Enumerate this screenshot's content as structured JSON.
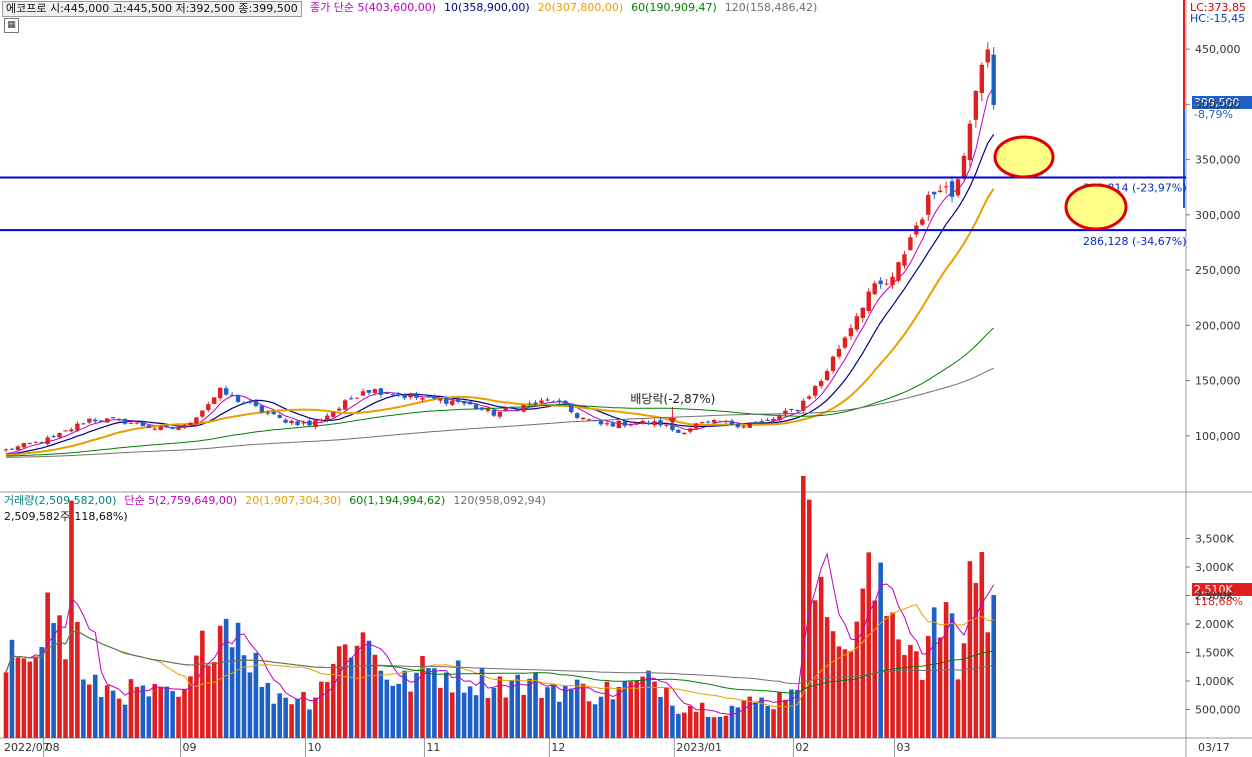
{
  "header": {
    "stock_info": "에코프로 시:445,000 고:445,500 저:392,500 종:399,500",
    "ma_items": [
      {
        "text": "종가 단순 5(403,600,00)",
        "color": "#c000c0"
      },
      {
        "text": "10(358,900,00)",
        "color": "#000080"
      },
      {
        "text": "20(307,800,00)",
        "color": "#e8a000"
      },
      {
        "text": "60(190,909,47)",
        "color": "#008000"
      },
      {
        "text": "120(158,486,42)",
        "color": "#707070"
      }
    ],
    "lc_label": "LC:373,85",
    "hc_label": "HC:-15,45"
  },
  "volume_header": {
    "items": [
      {
        "text": "거래량(2,509,582,00)",
        "color": "#008080"
      },
      {
        "text": "단순 5(2,759,649,00)",
        "color": "#c000c0"
      },
      {
        "text": "20(1,907,304,30)",
        "color": "#e8a000"
      },
      {
        "text": "60(1,194,994,62)",
        "color": "#008000"
      },
      {
        "text": "120(958,092,94)",
        "color": "#707070"
      }
    ],
    "sub_label": "2,509,582주(118,68%)"
  },
  "right_tags": {
    "price": "399,500",
    "price_pct": "-8,79%",
    "volume": "2,510K",
    "volume_pct": "118,68%"
  },
  "annotations": {
    "dividend": "배당락(-2,87%)",
    "line_upper_label": "333,814 (-23,97%)",
    "line_lower_label": "286,128 (-34,67%)"
  },
  "chart_data": [
    {
      "type": "candlestick",
      "ylim": [
        50000,
        480000
      ],
      "y_ticks": [
        100000,
        150000,
        200000,
        250000,
        300000,
        350000,
        400000,
        450000
      ],
      "y_tick_labels": [
        "100,000",
        "150,000",
        "200,000",
        "250,000",
        "300,000",
        "350,000",
        "400,000",
        "450,000"
      ],
      "x_labels": [
        "2022/07",
        "08",
        "09",
        "10",
        "11",
        "12",
        "2023/01",
        "02",
        "03",
        "03/17"
      ],
      "trading_days": 167,
      "horizontal_lines": [
        333814,
        286128
      ],
      "month_start_index": [
        0,
        7,
        30,
        51,
        71,
        92,
        113,
        133,
        150
      ],
      "close_anchors": [
        [
          0,
          87000
        ],
        [
          8,
          98000
        ],
        [
          14,
          115000
        ],
        [
          20,
          113000
        ],
        [
          26,
          106000
        ],
        [
          30,
          108000
        ],
        [
          36,
          140000
        ],
        [
          40,
          130000
        ],
        [
          46,
          115000
        ],
        [
          51,
          110000
        ],
        [
          56,
          125000
        ],
        [
          60,
          142000
        ],
        [
          64,
          140000
        ],
        [
          68,
          135000
        ],
        [
          72,
          133000
        ],
        [
          76,
          131000
        ],
        [
          82,
          120000
        ],
        [
          87,
          127000
        ],
        [
          92,
          132000
        ],
        [
          96,
          118000
        ],
        [
          100,
          110000
        ],
        [
          106,
          112000
        ],
        [
          110,
          111000
        ],
        [
          113,
          103000
        ],
        [
          116,
          110000
        ],
        [
          120,
          112000
        ],
        [
          124,
          110000
        ],
        [
          128,
          113000
        ],
        [
          133,
          125000
        ],
        [
          137,
          150000
        ],
        [
          141,
          190000
        ],
        [
          145,
          230000
        ],
        [
          149,
          240000
        ],
        [
          152,
          280000
        ],
        [
          155,
          312000
        ],
        [
          157,
          330000
        ],
        [
          159,
          318000
        ],
        [
          161,
          360000
        ],
        [
          163,
          420000
        ],
        [
          164,
          430000
        ],
        [
          165,
          445000
        ],
        [
          166,
          399500
        ]
      ],
      "series": [
        {
          "name": "5",
          "color": "#c000c0"
        },
        {
          "name": "10",
          "color": "#000080"
        },
        {
          "name": "20",
          "color": "#e8a000"
        },
        {
          "name": "60",
          "color": "#008000"
        },
        {
          "name": "120",
          "color": "#707070"
        }
      ]
    },
    {
      "type": "bar",
      "title": "거래량",
      "ylim": [
        0,
        4000000
      ],
      "y_ticks": [
        500000,
        1000000,
        1500000,
        2000000,
        2500000,
        3000000,
        3500000
      ],
      "y_tick_labels": [
        "500,000",
        "1,000K",
        "1,500K",
        "2,000K",
        "2,500K",
        "3,000K",
        "3,500K"
      ],
      "volume_anchors": [
        [
          0,
          900000
        ],
        [
          1,
          1400000
        ],
        [
          8,
          2300000
        ],
        [
          10,
          1500000
        ],
        [
          11,
          3800000
        ],
        [
          13,
          900000
        ],
        [
          30,
          700000
        ],
        [
          34,
          1800000
        ],
        [
          38,
          2200000
        ],
        [
          44,
          800000
        ],
        [
          51,
          700000
        ],
        [
          59,
          1900000
        ],
        [
          66,
          900000
        ],
        [
          71,
          1200000
        ],
        [
          80,
          1000000
        ],
        [
          92,
          900000
        ],
        [
          100,
          800000
        ],
        [
          110,
          1000000
        ],
        [
          113,
          600000
        ],
        [
          120,
          500000
        ],
        [
          130,
          700000
        ],
        [
          133,
          1100000
        ],
        [
          134,
          3900000
        ],
        [
          136,
          2800000
        ],
        [
          137,
          3800000
        ],
        [
          140,
          1300000
        ],
        [
          145,
          2700000
        ],
        [
          150,
          2000000
        ],
        [
          154,
          1400000
        ],
        [
          158,
          2300000
        ],
        [
          160,
          1100000
        ],
        [
          162,
          2700000
        ],
        [
          163,
          3300000
        ],
        [
          164,
          3100000
        ],
        [
          165,
          2000000
        ],
        [
          166,
          2500000
        ]
      ]
    }
  ]
}
